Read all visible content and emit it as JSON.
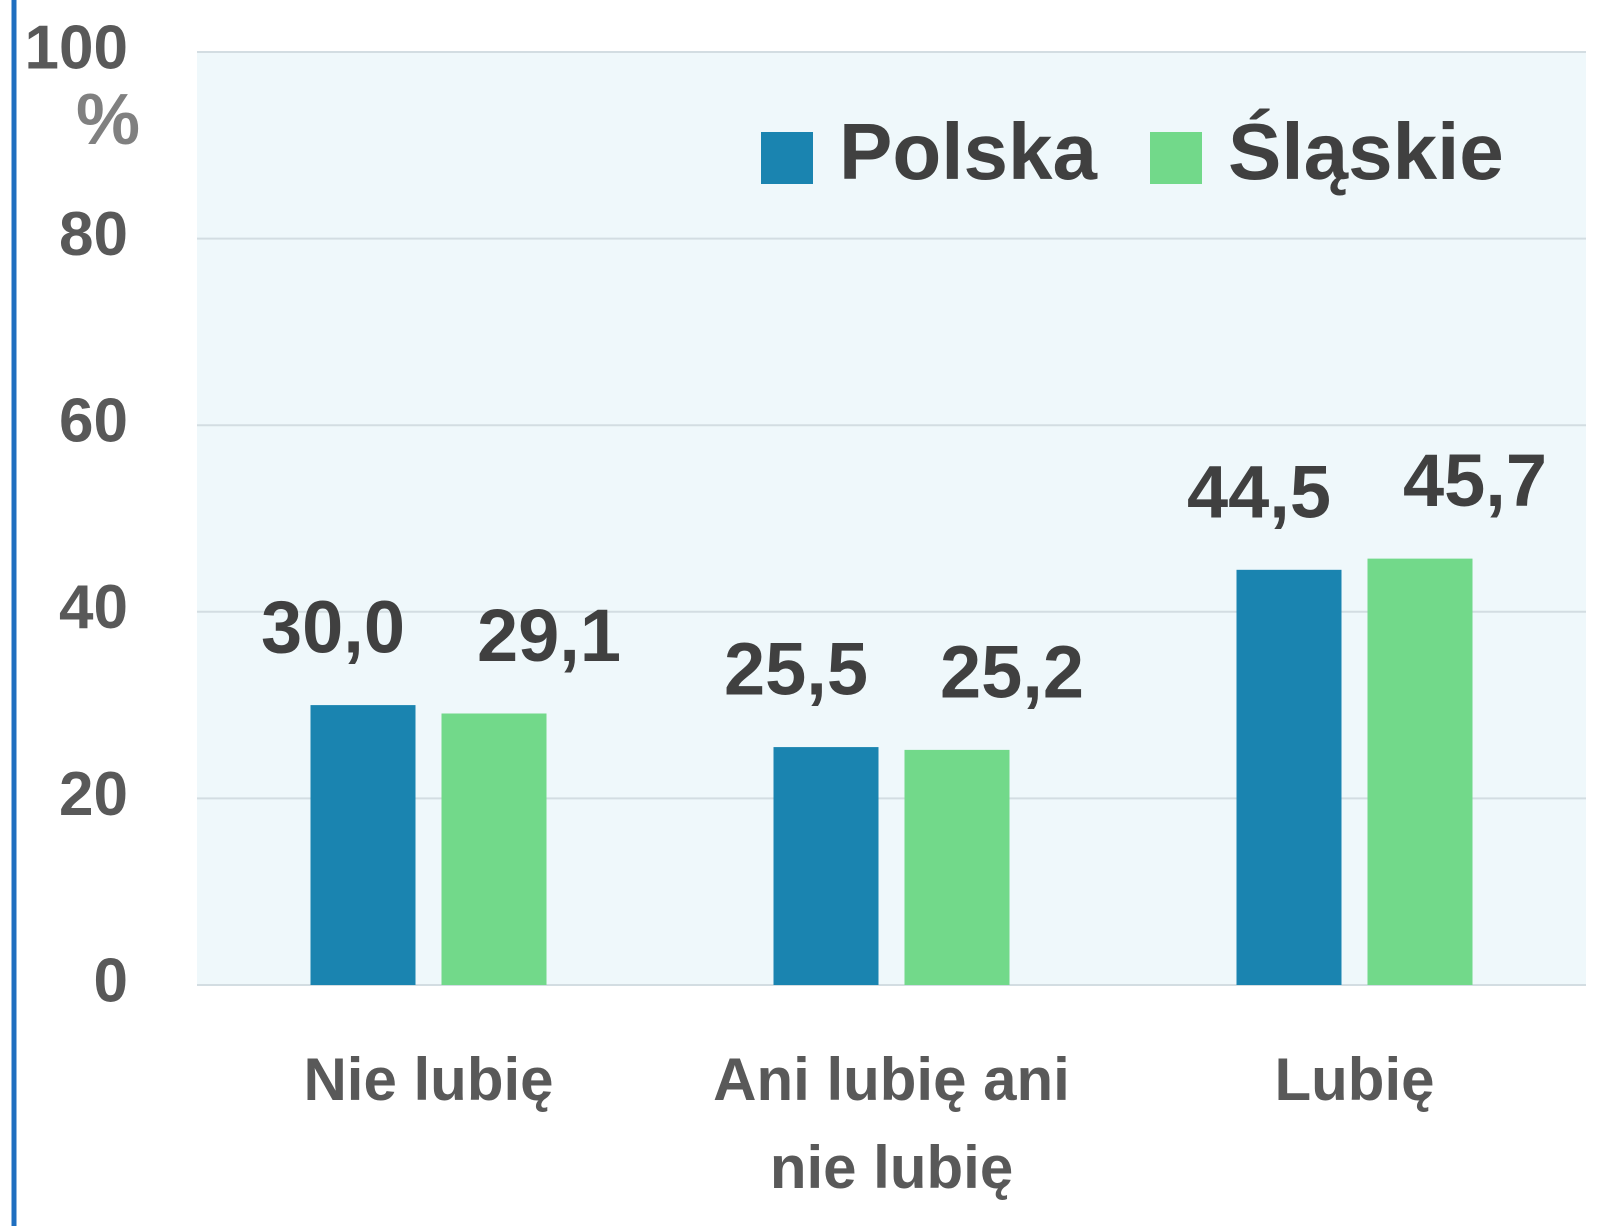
{
  "chart_data": {
    "type": "bar",
    "y_unit": "%",
    "categories": [
      "Nie lubię",
      "Ani lubię ani nie lubię",
      "Lubię"
    ],
    "series": [
      {
        "name": "Polska",
        "color": "#1a84b0",
        "values": [
          30.0,
          25.5,
          44.5
        ],
        "value_labels": [
          "30,0",
          "25,5",
          "44,5"
        ]
      },
      {
        "name": "Śląskie",
        "color": "#72d98a",
        "values": [
          29.1,
          25.2,
          45.7
        ],
        "value_labels": [
          "29,1",
          "25,2",
          "45,7"
        ]
      }
    ],
    "ylim": [
      0,
      100
    ],
    "yticks": [
      0,
      20,
      40,
      60,
      80,
      100
    ],
    "grid": true,
    "legend": "top-right"
  }
}
